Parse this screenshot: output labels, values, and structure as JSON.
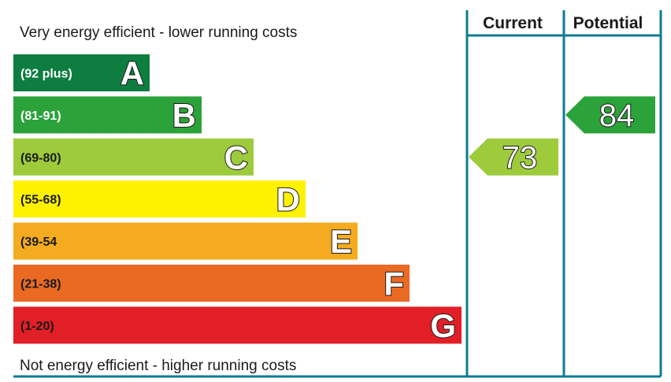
{
  "chart_data": {
    "type": "bar",
    "top_caption": "Very energy efficient - lower running costs",
    "bottom_caption": "Not energy efficient - higher running costs",
    "columns": [
      "Current",
      "Potential"
    ],
    "bands": [
      {
        "letter": "A",
        "range": "(92 plus)",
        "color": "#0e7d40",
        "range_color": "#ffffff"
      },
      {
        "letter": "B",
        "range": "(81-91)",
        "color": "#2ba23a",
        "range_color": "#ffffff"
      },
      {
        "letter": "C",
        "range": "(69-80)",
        "color": "#9dcb3c",
        "range_color": "#1a1a1a"
      },
      {
        "letter": "D",
        "range": "(55-68)",
        "color": "#fff200",
        "range_color": "#1a1a1a"
      },
      {
        "letter": "E",
        "range": "(39-54",
        "color": "#f5ab1f",
        "range_color": "#1a1a1a"
      },
      {
        "letter": "F",
        "range": "(21-38)",
        "color": "#ea6a24",
        "range_color": "#1a1a1a"
      },
      {
        "letter": "G",
        "range": "(1-20)",
        "color": "#e21f26",
        "range_color": "#1a1a1a"
      }
    ],
    "current": {
      "value": 73,
      "band": "C",
      "color": "#9dcb3c"
    },
    "potential": {
      "value": 84,
      "band": "B",
      "color": "#2ba23a"
    }
  }
}
